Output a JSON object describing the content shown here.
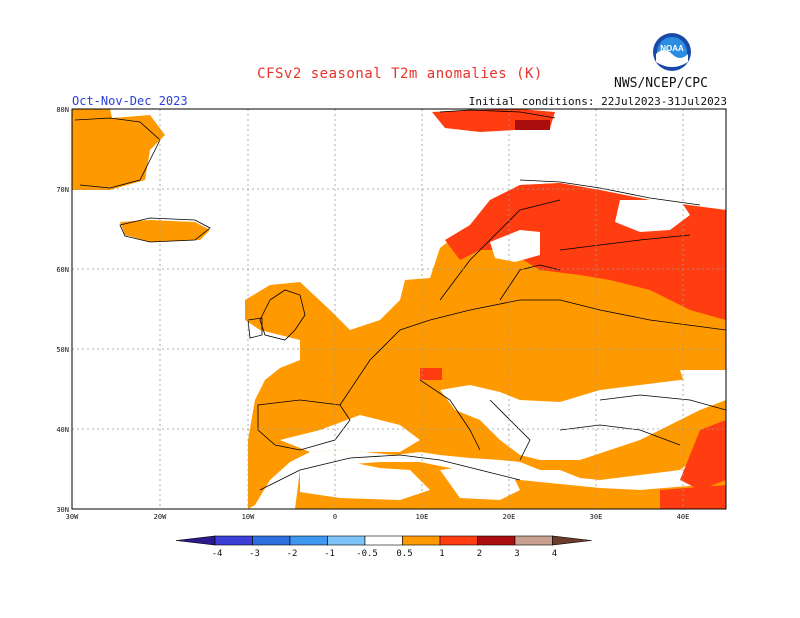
{
  "title": "CFSv2 seasonal T2m anomalies (K)",
  "season": "Oct-Nov-Dec 2023",
  "initial_conditions": "Initial conditions: 22Jul2023-31Jul2023",
  "agency": "NWS/NCEP/CPC",
  "logo_icon": "noaa-logo-icon",
  "lat_labels": [
    "80N",
    "70N",
    "60N",
    "50N",
    "40N",
    "30N"
  ],
  "lon_labels": [
    "30W",
    "20W",
    "10W",
    "0",
    "10E",
    "20E",
    "30E",
    "40E"
  ],
  "colorbar": {
    "ticks": [
      "-4",
      "-3",
      "-2",
      "-1",
      "-0.5",
      "0.5",
      "1",
      "2",
      "3",
      "4"
    ],
    "colors": [
      "#2a1a8c",
      "#3b3fd6",
      "#2f6ee0",
      "#3d98f0",
      "#7ec3f7",
      "#ffffff",
      "#ff9900",
      "#ff3d10",
      "#aa0d0d",
      "#c9a191",
      "#6d3b2c"
    ]
  }
}
